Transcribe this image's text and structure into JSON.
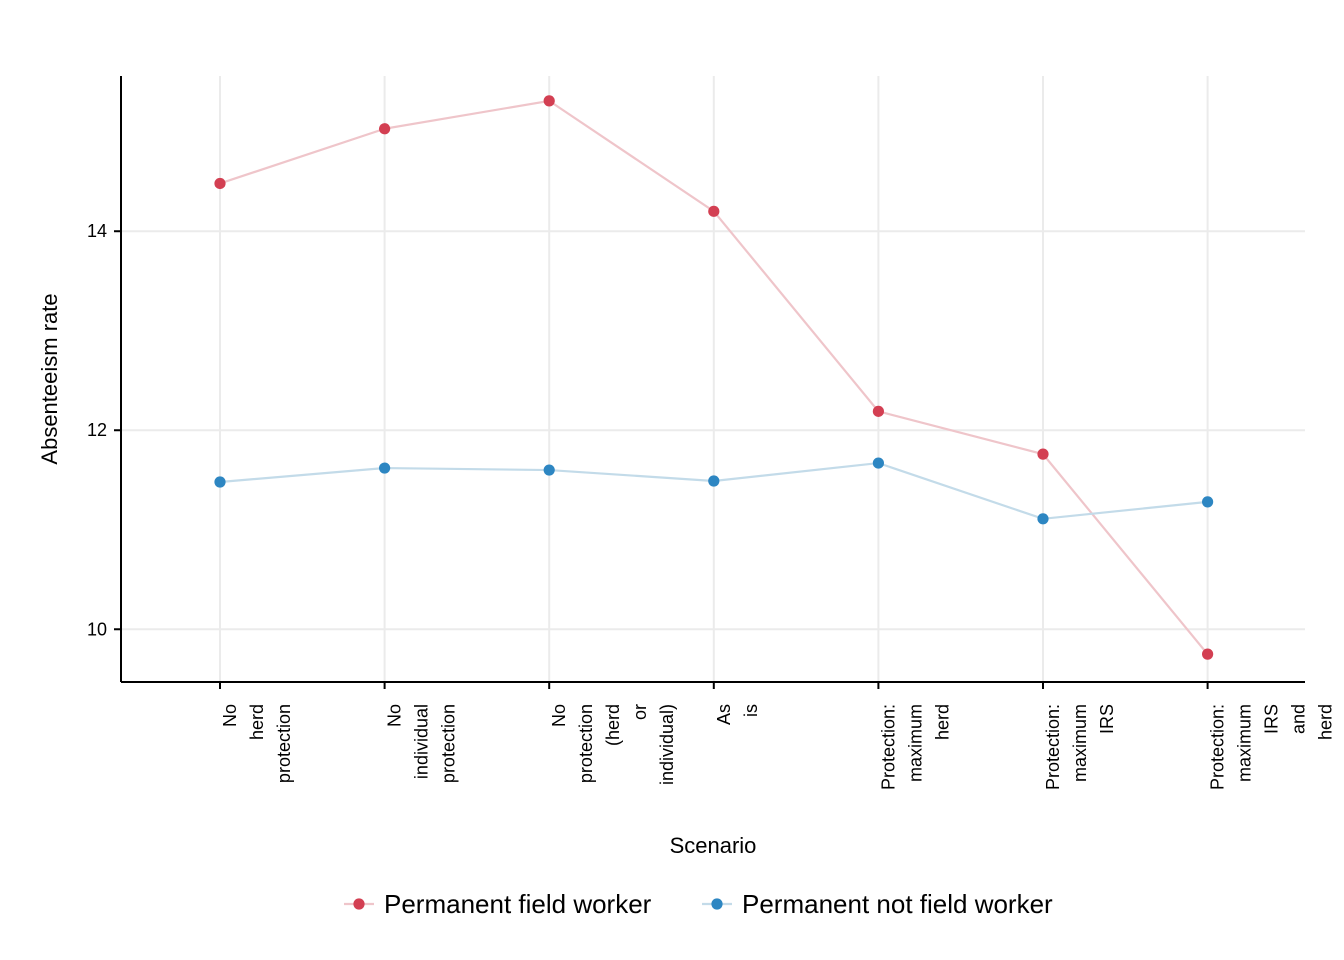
{
  "chart_data": {
    "type": "line",
    "title": "",
    "xlabel": "Scenario",
    "ylabel": "Absenteeism rate",
    "categories": [
      [
        "No",
        "herd",
        "protection"
      ],
      [
        "No",
        "individual",
        "protection"
      ],
      [
        "No",
        "protection",
        "(herd",
        "or",
        "individual)"
      ],
      [
        "As",
        "is"
      ],
      [
        "Protection:",
        "maximum",
        "herd"
      ],
      [
        "Protection:",
        "maximum",
        "IRS"
      ],
      [
        "Protection:",
        "maximum",
        "IRS",
        "and",
        "herd"
      ]
    ],
    "yticks": [
      10,
      12,
      14
    ],
    "ylim": [
      9.47,
      15.56
    ],
    "grid": true,
    "legend_position": "bottom",
    "series": [
      {
        "name": "Permanent field worker",
        "point_color": "#d33f52",
        "line_color": "#efc5ca",
        "values": [
          14.48,
          15.03,
          15.31,
          14.2,
          12.19,
          11.76,
          9.75
        ]
      },
      {
        "name": "Permanent not field worker",
        "point_color": "#2d86c2",
        "line_color": "#c3dbe9",
        "values": [
          11.48,
          11.62,
          11.6,
          11.49,
          11.67,
          11.11,
          11.28
        ]
      }
    ]
  }
}
